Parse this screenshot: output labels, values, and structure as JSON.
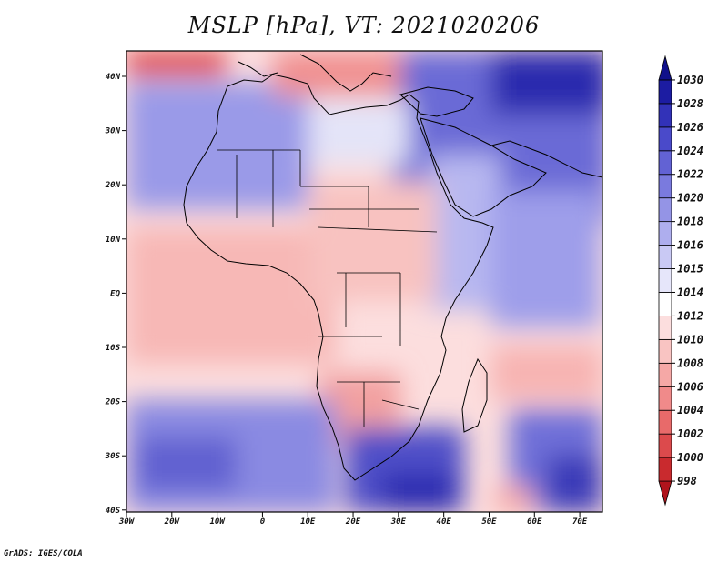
{
  "title": "MSLP [hPa], VT: 2021020206",
  "footer": "GrADS: IGES/COLA",
  "map": {
    "lat_labels": [
      "40N",
      "30N",
      "20N",
      "10N",
      "EQ",
      "10S",
      "20S",
      "30S",
      "40S"
    ],
    "lon_labels": [
      "30W",
      "20W",
      "10W",
      "0",
      "10E",
      "20E",
      "30E",
      "40E",
      "50E",
      "60E",
      "70E"
    ],
    "lon_range": [
      -30,
      75
    ],
    "lat_range": [
      -40,
      45
    ],
    "colorbar": {
      "levels": [
        "998",
        "1000",
        "1002",
        "1004",
        "1006",
        "1008",
        "1010",
        "1012",
        "1014",
        "1015",
        "1016",
        "1018",
        "1020",
        "1022",
        "1024",
        "1026",
        "1028",
        "1030"
      ],
      "colors": [
        "#b0141c",
        "#c92a2e",
        "#dc4a4c",
        "#e86a6a",
        "#f08a8a",
        "#f5a8a6",
        "#f9c4c2",
        "#fcdede",
        "#ffffff",
        "#e6e6fa",
        "#c9c9f4",
        "#aeaeee",
        "#9494e6",
        "#7a7ade",
        "#6262d4",
        "#4a4aca",
        "#3232b8",
        "#1c1ca2",
        "#10108a"
      ]
    }
  }
}
